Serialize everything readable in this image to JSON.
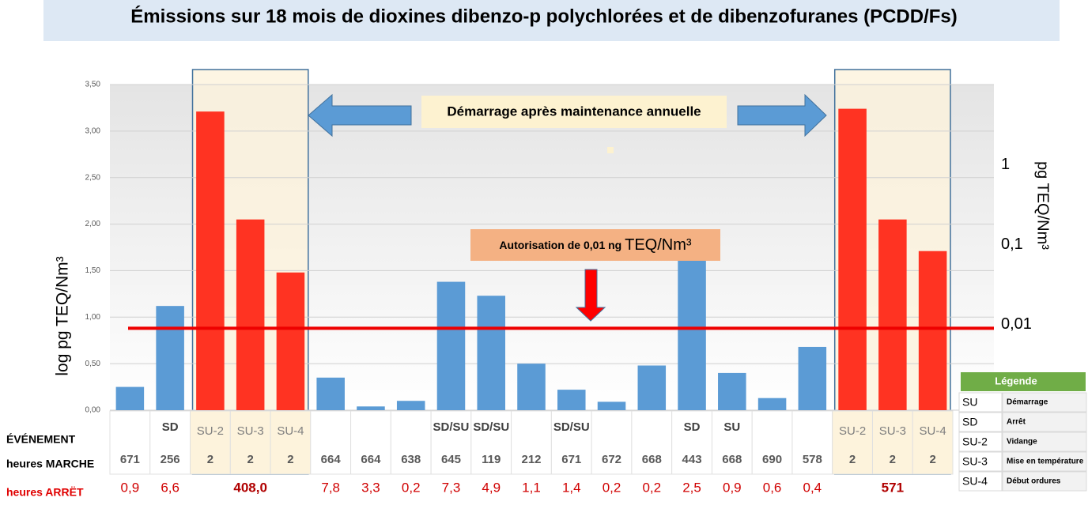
{
  "chart_data": {
    "type": "bar",
    "title": "Émissions sur 18 mois de dioxines dibenzo-p polychlorées et de dibenzofuranes (PCDD/Fs)",
    "ylabel": "log pg TEQ/Nm³",
    "y2label": "pg TEQ/Nm³",
    "values": [
      0.25,
      1.12,
      3.21,
      2.05,
      1.48,
      0.35,
      0.04,
      0.1,
      1.38,
      1.23,
      0.5,
      0.22,
      0.09,
      0.48,
      1.62,
      0.4,
      0.13,
      0.68,
      3.24,
      2.05,
      1.71
    ],
    "colors": [
      "#5b9bd5",
      "#5b9bd5",
      "#ff3322",
      "#ff3322",
      "#ff3322",
      "#5b9bd5",
      "#5b9bd5",
      "#5b9bd5",
      "#5b9bd5",
      "#5b9bd5",
      "#5b9bd5",
      "#5b9bd5",
      "#5b9bd5",
      "#5b9bd5",
      "#5b9bd5",
      "#5b9bd5",
      "#5b9bd5",
      "#5b9bd5",
      "#ff3322",
      "#ff3322",
      "#ff3322"
    ],
    "ylim": [
      0,
      3.5
    ],
    "yticks": [
      {
        "value": 0,
        "label": "0,00"
      },
      {
        "value": 0.5,
        "label": "0,50"
      },
      {
        "value": 1,
        "label": "1,00"
      },
      {
        "value": 1.5,
        "label": "1,50"
      },
      {
        "value": 2,
        "label": "2,00"
      },
      {
        "value": 2.5,
        "label": "2,50"
      },
      {
        "value": 3,
        "label": "3,00"
      },
      {
        "value": 3.5,
        "label": "3,50"
      }
    ],
    "y2_log": true,
    "y2lim": [
      0.00085,
      10.2
    ],
    "y2ticks": [
      {
        "value": 1,
        "label": "1"
      },
      {
        "value": 0.1,
        "label": "0,1"
      },
      {
        "value": 0.01,
        "label": "0,01"
      }
    ],
    "grid": true,
    "threshold": 0.88,
    "threshold_color": "#ee0000",
    "annotations": {
      "banner": "Démarrage après maintenance annuelle",
      "limit_prefix": "Autorisation de 0,01 ng ",
      "limit_unit": "TEQ/Nm³"
    },
    "table": {
      "row_labels": [
        "ÉVÉNEMENT",
        "heures MARCHE",
        "heures ARRËT"
      ],
      "events": [
        null,
        "SD",
        "SU-2",
        "SU-3",
        "SU-4",
        null,
        null,
        null,
        "SD/SU",
        "SD/SU",
        null,
        "SD/SU",
        null,
        null,
        "SD",
        "SU",
        null,
        null,
        "SU-2",
        "SU-3",
        "SU-4"
      ],
      "run_hours": [
        671,
        256,
        2,
        2,
        2,
        664,
        664,
        638,
        645,
        119,
        212,
        671,
        672,
        668,
        443,
        668,
        690,
        578,
        2,
        2,
        2
      ],
      "stop_hours": [
        "0,9",
        "6,6",
        null,
        "408,0",
        null,
        "7,8",
        "3,3",
        "0,2",
        "7,3",
        "4,9",
        "1,1",
        "1,4",
        "0,2",
        "0,2",
        "2,5",
        "0,9",
        "0,6",
        "0,4",
        null,
        "571",
        null
      ]
    },
    "legend_table": {
      "title": "Légende",
      "rows": [
        [
          "SU",
          "Démarrage"
        ],
        [
          "SD",
          "Arrêt"
        ],
        [
          "SU-2",
          "Vidange"
        ],
        [
          "SU-3",
          "Mise en température"
        ],
        [
          "SU-4",
          "Début ordures"
        ]
      ]
    }
  }
}
